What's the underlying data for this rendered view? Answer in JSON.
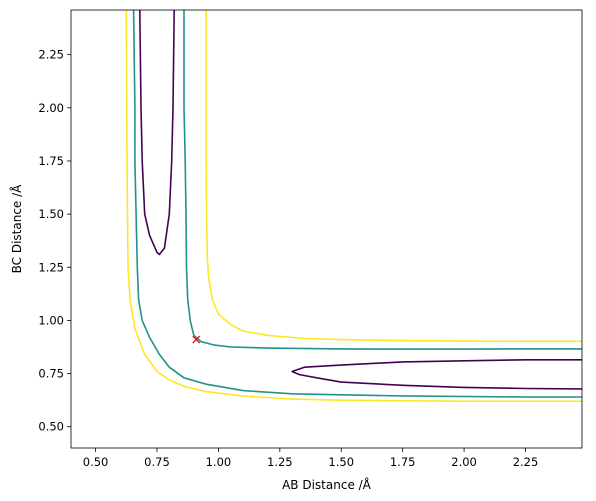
{
  "chart_data": {
    "type": "contour",
    "xlabel": "AB Distance /Å",
    "ylabel": "BC Distance /Å",
    "xlim": [
      0.4,
      2.48
    ],
    "ylim": [
      0.4,
      2.46
    ],
    "x_ticks": [
      "0.50",
      "0.75",
      "1.00",
      "1.25",
      "1.50",
      "1.75",
      "2.00",
      "2.25"
    ],
    "y_ticks": [
      "0.50",
      "0.75",
      "1.00",
      "1.25",
      "1.50",
      "1.75",
      "2.00",
      "2.25"
    ],
    "contours": [
      {
        "color": "#440154",
        "paths": [
          [
            [
              0.68,
              2.46
            ],
            [
              0.685,
              2.0
            ],
            [
              0.69,
              1.75
            ],
            [
              0.7,
              1.5
            ],
            [
              0.72,
              1.4
            ],
            [
              0.75,
              1.32
            ],
            [
              0.76,
              1.31
            ],
            [
              0.78,
              1.34
            ],
            [
              0.8,
              1.5
            ],
            [
              0.81,
              1.75
            ],
            [
              0.815,
              2.0
            ],
            [
              0.82,
              2.46
            ]
          ],
          [
            [
              2.48,
              0.815
            ],
            [
              2.25,
              0.815
            ],
            [
              2.0,
              0.81
            ],
            [
              1.75,
              0.805
            ],
            [
              1.5,
              0.79
            ],
            [
              1.35,
              0.78
            ],
            [
              1.3,
              0.76
            ],
            [
              1.33,
              0.745
            ],
            [
              1.4,
              0.73
            ],
            [
              1.5,
              0.71
            ],
            [
              1.75,
              0.695
            ],
            [
              2.0,
              0.685
            ],
            [
              2.25,
              0.68
            ],
            [
              2.48,
              0.678
            ]
          ]
        ]
      },
      {
        "color": "#21918c",
        "paths": [
          [
            [
              0.655,
              2.46
            ],
            [
              0.66,
              2.0
            ],
            [
              0.66,
              1.75
            ],
            [
              0.665,
              1.5
            ],
            [
              0.67,
              1.25
            ],
            [
              0.675,
              1.1
            ],
            [
              0.69,
              1.0
            ],
            [
              0.72,
              0.92
            ],
            [
              0.76,
              0.84
            ],
            [
              0.8,
              0.78
            ],
            [
              0.86,
              0.73
            ],
            [
              0.95,
              0.7
            ],
            [
              1.1,
              0.67
            ],
            [
              1.3,
              0.655
            ],
            [
              1.5,
              0.65
            ],
            [
              1.75,
              0.645
            ],
            [
              2.0,
              0.642
            ],
            [
              2.25,
              0.64
            ],
            [
              2.48,
              0.64
            ]
          ],
          [
            [
              0.86,
              2.46
            ],
            [
              0.86,
              2.0
            ],
            [
              0.865,
              1.75
            ],
            [
              0.868,
              1.5
            ],
            [
              0.87,
              1.25
            ],
            [
              0.875,
              1.1
            ],
            [
              0.885,
              1.0
            ],
            [
              0.9,
              0.93
            ],
            [
              0.93,
              0.9
            ],
            [
              0.98,
              0.885
            ],
            [
              1.05,
              0.875
            ],
            [
              1.2,
              0.87
            ],
            [
              1.5,
              0.866
            ],
            [
              1.75,
              0.865
            ],
            [
              2.0,
              0.865
            ],
            [
              2.25,
              0.866
            ],
            [
              2.48,
              0.866
            ]
          ]
        ]
      },
      {
        "color": "#fde725",
        "paths": [
          [
            [
              0.625,
              2.46
            ],
            [
              0.627,
              2.0
            ],
            [
              0.628,
              1.75
            ],
            [
              0.63,
              1.5
            ],
            [
              0.632,
              1.25
            ],
            [
              0.64,
              1.1
            ],
            [
              0.66,
              0.96
            ],
            [
              0.7,
              0.84
            ],
            [
              0.75,
              0.76
            ],
            [
              0.8,
              0.72
            ],
            [
              0.86,
              0.69
            ],
            [
              0.95,
              0.665
            ],
            [
              1.1,
              0.645
            ],
            [
              1.3,
              0.63
            ],
            [
              1.5,
              0.625
            ],
            [
              1.75,
              0.622
            ],
            [
              2.0,
              0.62
            ],
            [
              2.25,
              0.62
            ],
            [
              2.48,
              0.62
            ]
          ],
          [
            [
              0.95,
              2.46
            ],
            [
              0.95,
              2.0
            ],
            [
              0.95,
              1.75
            ],
            [
              0.952,
              1.5
            ],
            [
              0.955,
              1.3
            ],
            [
              0.96,
              1.2
            ],
            [
              0.975,
              1.1
            ],
            [
              1.0,
              1.03
            ],
            [
              1.05,
              0.98
            ],
            [
              1.1,
              0.95
            ],
            [
              1.2,
              0.93
            ],
            [
              1.35,
              0.915
            ],
            [
              1.5,
              0.91
            ],
            [
              1.75,
              0.905
            ],
            [
              2.0,
              0.903
            ],
            [
              2.25,
              0.902
            ],
            [
              2.48,
              0.902
            ]
          ]
        ]
      }
    ],
    "marker": {
      "x": 0.91,
      "y": 0.91,
      "symbol": "x",
      "color": "#ff0000"
    },
    "grid": false
  }
}
